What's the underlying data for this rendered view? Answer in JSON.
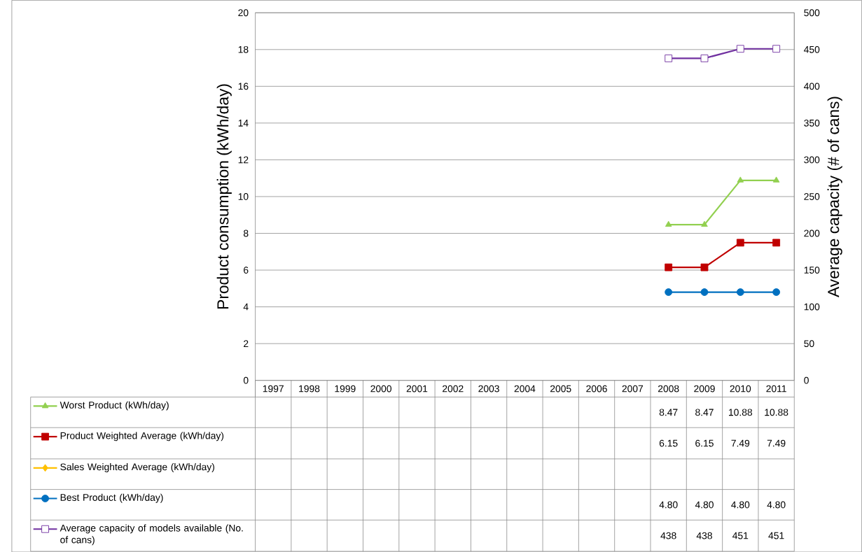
{
  "chart_data": {
    "type": "line",
    "ylabel": "Product consumption (kWh/day)",
    "y2label": "Average capacity (# of cans)",
    "categories": [
      "1997",
      "1998",
      "1999",
      "2000",
      "2001",
      "2002",
      "2003",
      "2004",
      "2005",
      "2006",
      "2007",
      "2008",
      "2009",
      "2010",
      "2011"
    ],
    "ylim": [
      0,
      20
    ],
    "yticks": [
      0,
      2,
      4,
      6,
      8,
      10,
      12,
      14,
      16,
      18,
      20
    ],
    "y2lim": [
      0,
      500
    ],
    "y2ticks": [
      0,
      50,
      100,
      150,
      200,
      250,
      300,
      350,
      400,
      450,
      500
    ],
    "grid": "y",
    "legend": "bottom",
    "line_style": "solid",
    "series": [
      {
        "name": "Worst Product (kWh/day)",
        "color": "#92d050",
        "marker": "triangle",
        "values": [
          null,
          null,
          null,
          null,
          null,
          null,
          null,
          null,
          null,
          null,
          null,
          8.47,
          8.47,
          10.88,
          10.88
        ],
        "value_labels": [
          null,
          null,
          null,
          null,
          null,
          null,
          null,
          null,
          null,
          null,
          null,
          "8.47",
          "8.47",
          "10.88",
          "10.88"
        ]
      },
      {
        "name": "Product Weighted Average (kWh/day)",
        "color": "#c00000",
        "marker": "square",
        "values": [
          null,
          null,
          null,
          null,
          null,
          null,
          null,
          null,
          null,
          null,
          null,
          6.15,
          6.15,
          7.49,
          7.49
        ],
        "value_labels": [
          null,
          null,
          null,
          null,
          null,
          null,
          null,
          null,
          null,
          null,
          null,
          "6.15",
          "6.15",
          "7.49",
          "7.49"
        ]
      },
      {
        "name": "Sales Weighted Average (kWh/day)",
        "color": "#ffc000",
        "marker": "diamond",
        "values": [
          null,
          null,
          null,
          null,
          null,
          null,
          null,
          null,
          null,
          null,
          null,
          null,
          null,
          null,
          null
        ]
      },
      {
        "name": "Best Product (kWh/day)",
        "color": "#0070c0",
        "marker": "circle",
        "values": [
          null,
          null,
          null,
          null,
          null,
          null,
          null,
          null,
          null,
          null,
          null,
          4.8,
          4.8,
          4.8,
          4.8
        ],
        "value_labels": [
          null,
          null,
          null,
          null,
          null,
          null,
          null,
          null,
          null,
          null,
          null,
          "4.80",
          "4.80",
          "4.80",
          "4.80"
        ]
      },
      {
        "name": "Average capacity of models available (No. of cans)",
        "color": "#7030a0",
        "marker": "square",
        "axis": "y2",
        "values": [
          null,
          null,
          null,
          null,
          null,
          null,
          null,
          null,
          null,
          null,
          null,
          438,
          438,
          451,
          451
        ],
        "value_labels": [
          null,
          null,
          null,
          null,
          null,
          null,
          null,
          null,
          null,
          null,
          null,
          "438",
          "438",
          "451",
          "451"
        ]
      }
    ]
  }
}
